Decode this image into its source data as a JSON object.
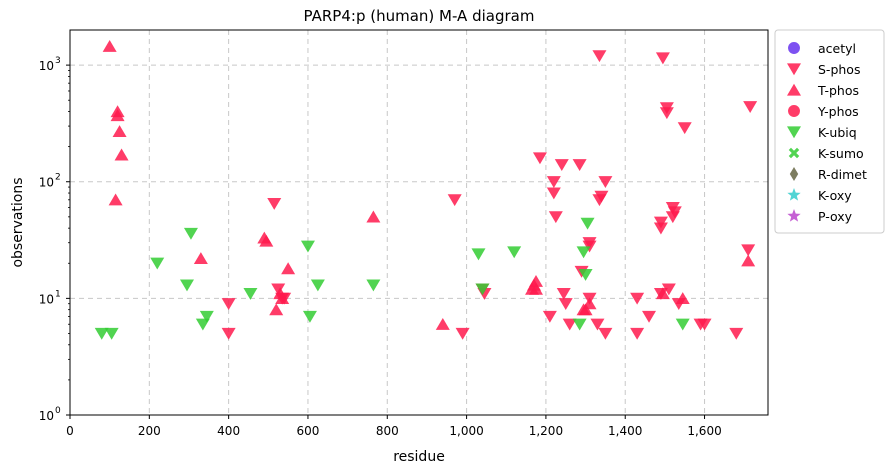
{
  "chart_data": {
    "type": "scatter",
    "title": "PARP4:p (human) M-A diagram",
    "xlabel": "residue",
    "ylabel": "observations",
    "xlim": [
      0,
      1760
    ],
    "ylim": [
      1,
      2000
    ],
    "yscale": "log",
    "x_ticks": [
      0,
      200,
      400,
      600,
      800,
      1000,
      1200,
      1400,
      1600
    ],
    "x_tick_labels": [
      "0",
      "200",
      "400",
      "600",
      "800",
      "1,000",
      "1,200",
      "1,400",
      "1,600"
    ],
    "y_ticks": [
      1,
      10,
      100,
      1000
    ],
    "y_tick_labels": [
      "10",
      "10",
      "10",
      "10"
    ],
    "y_tick_exponents": [
      "0",
      "1",
      "2",
      "3"
    ],
    "grid": true,
    "legend_position": "outside-right",
    "series": [
      {
        "name": "acetyl",
        "marker": "circle",
        "color": "#6633ee",
        "points": []
      },
      {
        "name": "S-phos",
        "marker": "triangle-down",
        "color": "#ff1a4d",
        "points": [
          [
            1335,
            1200
          ],
          [
            1495,
            1150
          ],
          [
            1505,
            430
          ],
          [
            1505,
            390
          ],
          [
            1715,
            440
          ],
          [
            1550,
            290
          ],
          [
            1185,
            160
          ],
          [
            1220,
            100
          ],
          [
            1240,
            140
          ],
          [
            1285,
            140
          ],
          [
            1350,
            100
          ],
          [
            1220,
            80
          ],
          [
            1340,
            75
          ],
          [
            1335,
            70
          ],
          [
            1225,
            50
          ],
          [
            970,
            70
          ],
          [
            515,
            65
          ],
          [
            1520,
            60
          ],
          [
            1525,
            55
          ],
          [
            1520,
            50
          ],
          [
            1490,
            45
          ],
          [
            1490,
            40
          ],
          [
            1710,
            26
          ],
          [
            1310,
            30
          ],
          [
            1310,
            28
          ],
          [
            1290,
            17
          ],
          [
            1490,
            11
          ],
          [
            1510,
            12
          ],
          [
            1245,
            11
          ],
          [
            1250,
            9
          ],
          [
            1535,
            9
          ],
          [
            1430,
            10
          ],
          [
            1310,
            10
          ],
          [
            1045,
            11
          ],
          [
            1040,
            12
          ],
          [
            400,
            9
          ],
          [
            535,
            10
          ],
          [
            540,
            10
          ],
          [
            525,
            12
          ],
          [
            1210,
            7
          ],
          [
            1460,
            7
          ],
          [
            1260,
            6
          ],
          [
            1330,
            6
          ],
          [
            1430,
            5
          ],
          [
            1590,
            6
          ],
          [
            1600,
            6
          ],
          [
            990,
            5
          ],
          [
            1350,
            5
          ],
          [
            1680,
            5
          ],
          [
            400,
            5
          ]
        ]
      },
      {
        "name": "T-phos",
        "marker": "triangle-up",
        "color": "#ff1a4d",
        "points": [
          [
            100,
            1450
          ],
          [
            120,
            400
          ],
          [
            120,
            370
          ],
          [
            125,
            270
          ],
          [
            130,
            170
          ],
          [
            115,
            70
          ],
          [
            765,
            50
          ],
          [
            490,
            33
          ],
          [
            495,
            31
          ],
          [
            330,
            22
          ],
          [
            550,
            18
          ],
          [
            1710,
            21
          ],
          [
            1170,
            13
          ],
          [
            1175,
            12
          ],
          [
            1165,
            12
          ],
          [
            1175,
            14
          ],
          [
            1495,
            11
          ],
          [
            1545,
            10
          ],
          [
            1310,
            9
          ],
          [
            1300,
            8
          ],
          [
            1295,
            8
          ],
          [
            520,
            8
          ],
          [
            940,
            6
          ],
          [
            530,
            11
          ],
          [
            535,
            10
          ]
        ]
      },
      {
        "name": "Y-phos",
        "marker": "circle",
        "color": "#ff1a4d",
        "points": []
      },
      {
        "name": "K-ubiq",
        "marker": "triangle-down",
        "color": "#33cc33",
        "points": [
          [
            305,
            36
          ],
          [
            600,
            28
          ],
          [
            220,
            20
          ],
          [
            1030,
            24
          ],
          [
            1120,
            25
          ],
          [
            1305,
            44
          ],
          [
            1295,
            25
          ],
          [
            1300,
            16
          ],
          [
            295,
            13
          ],
          [
            625,
            13
          ],
          [
            765,
            13
          ],
          [
            455,
            11
          ],
          [
            1040,
            12
          ],
          [
            345,
            7
          ],
          [
            335,
            6
          ],
          [
            605,
            7
          ],
          [
            1285,
            6
          ],
          [
            1545,
            6
          ],
          [
            80,
            5
          ],
          [
            105,
            5
          ]
        ]
      },
      {
        "name": "K-sumo",
        "marker": "x",
        "color": "#33cc33",
        "points": []
      },
      {
        "name": "R-dimet",
        "marker": "diamond",
        "color": "#666644",
        "points": []
      },
      {
        "name": "K-oxy",
        "marker": "star",
        "color": "#33cccc",
        "points": []
      },
      {
        "name": "P-oxy",
        "marker": "star",
        "color": "#bb44cc",
        "points": []
      }
    ]
  }
}
